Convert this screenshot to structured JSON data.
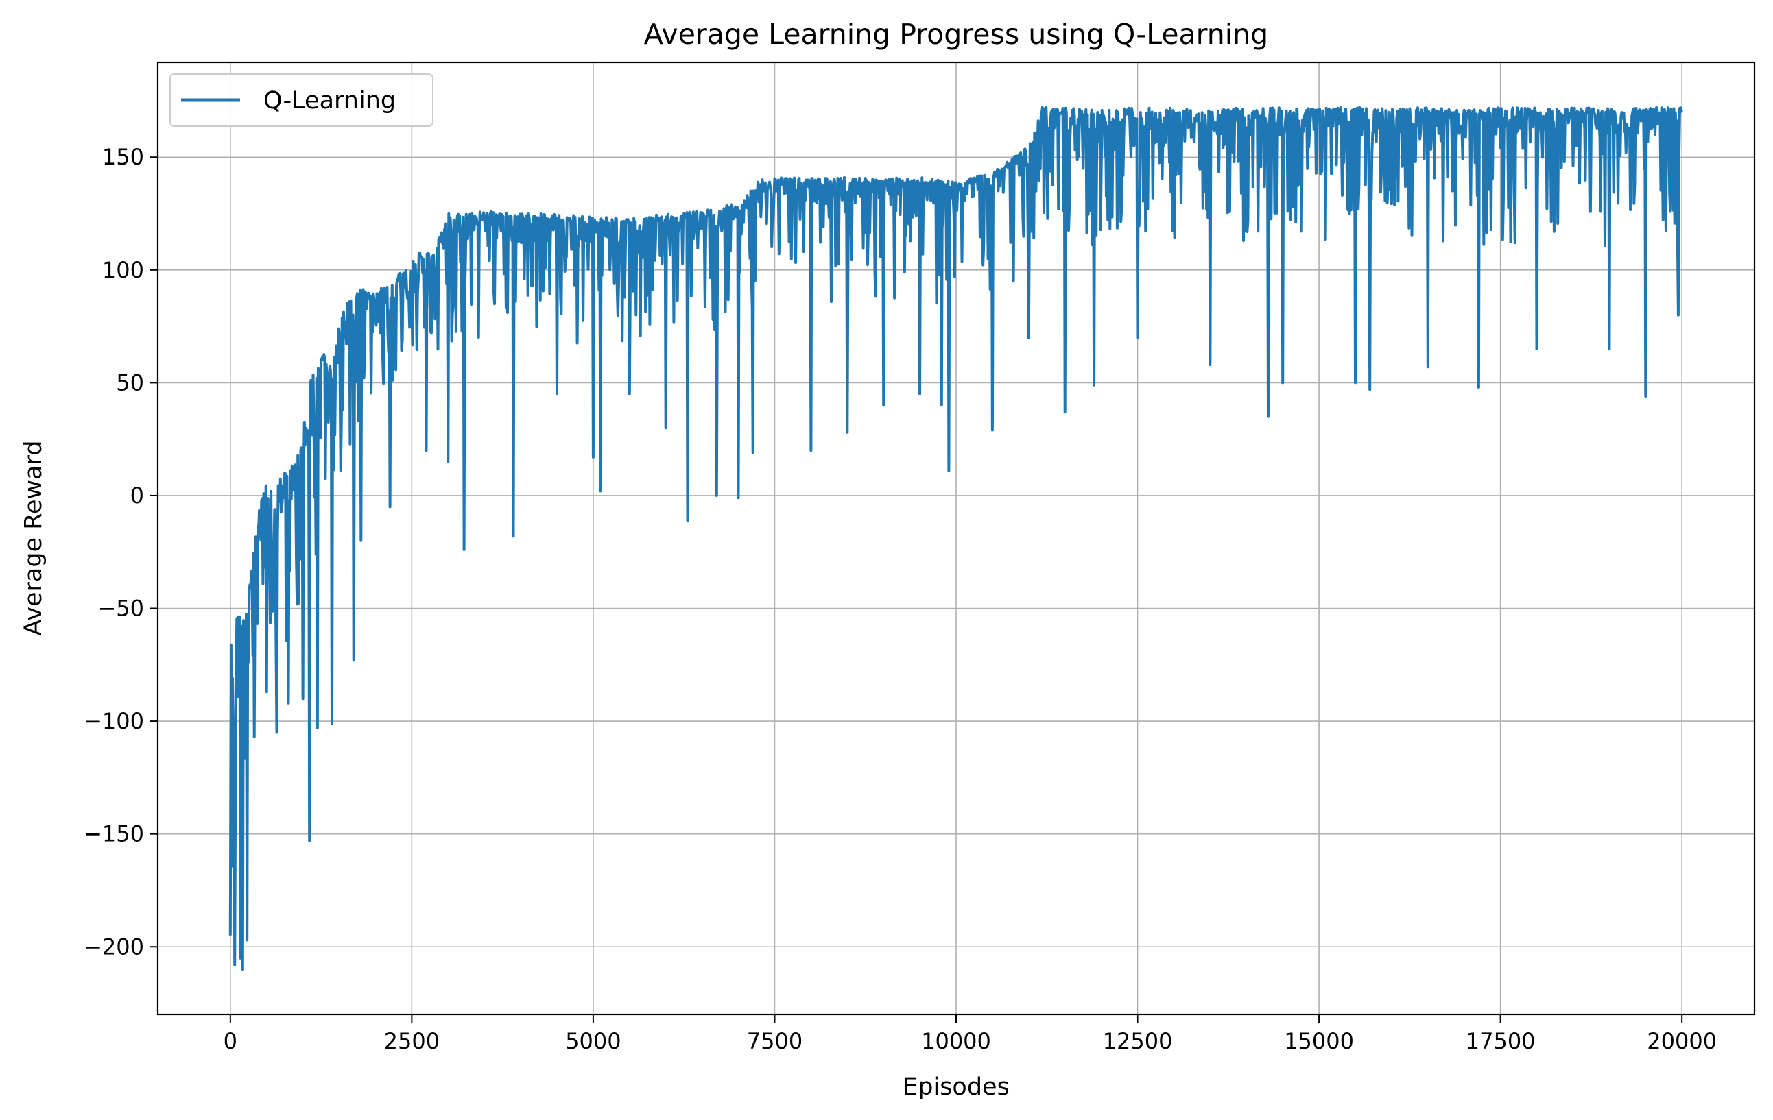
{
  "chart_data": {
    "type": "line",
    "title": "Average Learning Progress using Q-Learning",
    "xlabel": "Episodes",
    "ylabel": "Average Reward",
    "xlim": [
      -1000,
      21000
    ],
    "ylim": [
      -230,
      192
    ],
    "x_ticks": [
      0,
      2500,
      5000,
      7500,
      10000,
      12500,
      15000,
      17500,
      20000
    ],
    "x_tick_labels": [
      "0",
      "2500",
      "5000",
      "7500",
      "10000",
      "12500",
      "15000",
      "17500",
      "20000"
    ],
    "y_ticks": [
      -200,
      -150,
      -100,
      -50,
      0,
      50,
      100,
      150
    ],
    "y_tick_labels": [
      "−200",
      "−150",
      "−100",
      "−50",
      "0",
      "50",
      "100",
      "150"
    ],
    "grid": true,
    "legend_position": "upper-left",
    "series": [
      {
        "name": "Q-Learning",
        "color": "#1f77b4",
        "x": [
          0,
          100,
          200,
          300,
          400,
          500,
          600,
          700,
          800,
          900,
          1000,
          1100,
          1200,
          1300,
          1400,
          1500,
          1600,
          1700,
          1800,
          1900,
          2000,
          2200,
          2400,
          2600,
          2800,
          3000,
          3500,
          4000,
          4500,
          5000,
          5500,
          6000,
          6500,
          7000,
          7300,
          7500,
          8000,
          8500,
          9000,
          9500,
          10000,
          10500,
          11000,
          11200,
          11500,
          12000,
          12500,
          13000,
          13500,
          14000,
          14500,
          15000,
          15500,
          16000,
          16500,
          17000,
          17500,
          18000,
          18500,
          19000,
          19500,
          20000
        ],
        "high": [
          -53,
          -52,
          -55,
          -30,
          -5,
          8,
          0,
          10,
          12,
          15,
          30,
          50,
          62,
          63,
          55,
          78,
          85,
          88,
          92,
          90,
          90,
          95,
          100,
          108,
          108,
          125,
          126,
          125,
          125,
          124,
          123,
          125,
          126,
          130,
          140,
          141,
          141,
          141,
          141,
          141,
          140,
          143,
          155,
          173,
          172,
          171,
          172,
          172,
          171,
          172,
          172,
          172,
          172,
          172,
          172,
          171,
          172,
          172,
          172,
          172,
          172,
          172
        ],
        "upper": [
          -90,
          -80,
          -75,
          -50,
          -30,
          -15,
          -25,
          -10,
          -5,
          0,
          10,
          25,
          35,
          40,
          40,
          55,
          60,
          65,
          70,
          68,
          75,
          80,
          85,
          90,
          95,
          110,
          115,
          112,
          113,
          112,
          112,
          113,
          114,
          118,
          130,
          132,
          130,
          131,
          131,
          130,
          130,
          133,
          145,
          160,
          160,
          159,
          160,
          160,
          160,
          160,
          160,
          160,
          160,
          160,
          160,
          160,
          160,
          160,
          160,
          160,
          160,
          160
        ],
        "lower": [
          -150,
          -140,
          -110,
          -90,
          -70,
          -60,
          -60,
          -55,
          -50,
          -45,
          -40,
          -20,
          -10,
          -5,
          0,
          20,
          30,
          35,
          40,
          40,
          50,
          55,
          60,
          65,
          70,
          80,
          82,
          80,
          80,
          80,
          78,
          80,
          82,
          85,
          95,
          98,
          98,
          98,
          98,
          97,
          97,
          100,
          110,
          125,
          124,
          125,
          125,
          125,
          124,
          125,
          125,
          124,
          125,
          124,
          125,
          124,
          125,
          124,
          125,
          124,
          125,
          125
        ],
        "dips": [
          [
            0,
            -195
          ],
          [
            60,
            -208
          ],
          [
            140,
            -205
          ],
          [
            170,
            -210
          ],
          [
            230,
            -197
          ],
          [
            330,
            -107
          ],
          [
            500,
            -87
          ],
          [
            640,
            -105
          ],
          [
            800,
            -92
          ],
          [
            1000,
            -90
          ],
          [
            1090,
            -153
          ],
          [
            1200,
            -103
          ],
          [
            1400,
            -101
          ],
          [
            1700,
            -73
          ],
          [
            1800,
            -20
          ],
          [
            2200,
            -5
          ],
          [
            2700,
            20
          ],
          [
            3000,
            15
          ],
          [
            3220,
            -24
          ],
          [
            3900,
            -18
          ],
          [
            4500,
            45
          ],
          [
            5000,
            17
          ],
          [
            5100,
            2
          ],
          [
            5500,
            45
          ],
          [
            6000,
            30
          ],
          [
            6300,
            -11
          ],
          [
            6700,
            0
          ],
          [
            7000,
            -1
          ],
          [
            7200,
            19
          ],
          [
            8000,
            20
          ],
          [
            8500,
            28
          ],
          [
            9000,
            40
          ],
          [
            9500,
            45
          ],
          [
            9800,
            40
          ],
          [
            9900,
            11
          ],
          [
            10500,
            29
          ],
          [
            11000,
            70
          ],
          [
            11500,
            37
          ],
          [
            11900,
            49
          ],
          [
            12500,
            70
          ],
          [
            13500,
            58
          ],
          [
            14300,
            35
          ],
          [
            14500,
            50
          ],
          [
            15500,
            50
          ],
          [
            15700,
            47
          ],
          [
            16500,
            57
          ],
          [
            17200,
            48
          ],
          [
            18000,
            65
          ],
          [
            19000,
            65
          ],
          [
            19500,
            44
          ],
          [
            19950,
            80
          ]
        ]
      }
    ]
  }
}
